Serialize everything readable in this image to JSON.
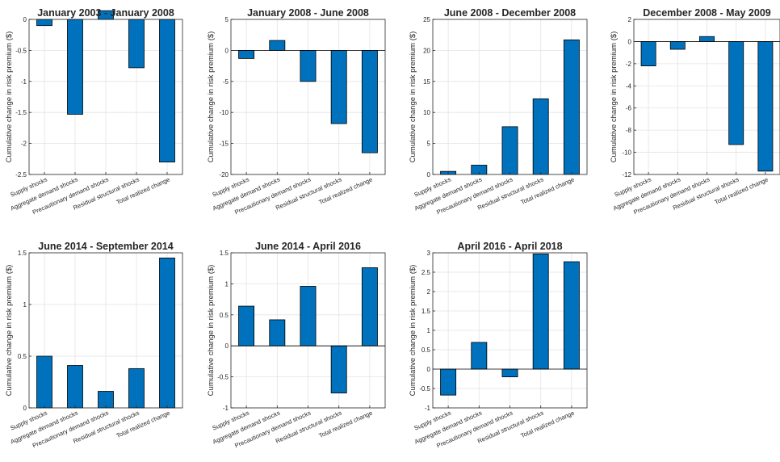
{
  "figure": {
    "bar_color": "#0072BD",
    "bar_edge": "#000000",
    "grid_color": "#e3e3e3",
    "axis_color": "#262626"
  },
  "chart_data": [
    {
      "type": "bar",
      "title": "January 2003 - January 2008",
      "ylabel": "Cumulative change in risk premium ($)",
      "categories": [
        "Supply shocks",
        "Aggregate demand shocks",
        "Precautionary demand shocks",
        "Residual structural shocks",
        "Total realized change"
      ],
      "values": [
        -0.1,
        -1.53,
        0.14,
        -0.78,
        -2.3
      ],
      "ylim": [
        -2.5,
        0
      ],
      "yticks": [
        0,
        -0.5,
        -1,
        -1.5,
        -2,
        -2.5
      ],
      "ytick_labels": [
        "0",
        "-0.5",
        "-1",
        "-1.5",
        "-2",
        "-2.5"
      ],
      "grid": true
    },
    {
      "type": "bar",
      "title": "January 2008 - June 2008",
      "ylabel": "Cumulative change in risk premium ($)",
      "categories": [
        "Supply shocks",
        "Aggregate demand shocks",
        "Precautionary demand shocks",
        "Residual structural shocks",
        "Total realized change"
      ],
      "values": [
        -1.3,
        1.6,
        -5.0,
        -11.8,
        -16.5
      ],
      "ylim": [
        -20,
        5
      ],
      "yticks": [
        5,
        0,
        -5,
        -10,
        -15,
        -20
      ],
      "ytick_labels": [
        "5",
        "0",
        "-5",
        "-10",
        "-15",
        "-20"
      ],
      "grid": true
    },
    {
      "type": "bar",
      "title": "June 2008 - December 2008",
      "ylabel": "Cumulative change in risk premium ($)",
      "categories": [
        "Supply shocks",
        "Aggregate demand shocks",
        "Precautionary demand shocks",
        "Residual structural shocks",
        "Total realized change"
      ],
      "values": [
        0.5,
        1.5,
        7.7,
        12.2,
        21.7
      ],
      "ylim": [
        0,
        25
      ],
      "yticks": [
        25,
        20,
        15,
        10,
        5,
        0
      ],
      "ytick_labels": [
        "25",
        "20",
        "15",
        "10",
        "5",
        "0"
      ],
      "grid": true
    },
    {
      "type": "bar",
      "title": "December 2008 - May 2009",
      "ylabel": "Cumulative change in risk premium ($)",
      "categories": [
        "Supply shocks",
        "Aggregate demand shocks",
        "Precautionary demand shocks",
        "Residual structural shocks",
        "Total realized change"
      ],
      "values": [
        -2.2,
        -0.7,
        0.45,
        -9.3,
        -11.7
      ],
      "ylim": [
        -12,
        2
      ],
      "yticks": [
        2,
        0,
        -2,
        -4,
        -6,
        -8,
        -10,
        -12
      ],
      "ytick_labels": [
        "2",
        "0",
        "-2",
        "-4",
        "-6",
        "-8",
        "-10",
        "-12"
      ],
      "grid": true
    },
    {
      "type": "bar",
      "title": "June 2014 - September 2014",
      "ylabel": "Cumulative change in risk premium ($)",
      "categories": [
        "Supply shocks",
        "Aggregate demand shocks",
        "Precautionary demand shocks",
        "Residual structural shocks",
        "Total realized change"
      ],
      "values": [
        0.5,
        0.41,
        0.16,
        0.38,
        1.45
      ],
      "ylim": [
        0,
        1.5
      ],
      "yticks": [
        1.5,
        1,
        0.5,
        0
      ],
      "ytick_labels": [
        "1.5",
        "1",
        "0.5",
        "0"
      ],
      "grid": true
    },
    {
      "type": "bar",
      "title": "June 2014 - April 2016",
      "ylabel": "Cumulative change in risk premium ($)",
      "categories": [
        "Supply shocks",
        "Aggregate demand shocks",
        "Precautionary demand shocks",
        "Residual structural shocks",
        "Total realized change"
      ],
      "values": [
        0.64,
        0.42,
        0.96,
        -0.76,
        1.26
      ],
      "ylim": [
        -1,
        1.5
      ],
      "yticks": [
        1.5,
        1,
        0.5,
        0,
        -0.5,
        -1
      ],
      "ytick_labels": [
        "1.5",
        "1",
        "0.5",
        "0",
        "-0.5",
        "-1"
      ],
      "grid": true
    },
    {
      "type": "bar",
      "title": "April 2016 - April 2018",
      "ylabel": "Cumulative change in risk premium ($)",
      "categories": [
        "Supply shocks",
        "Aggregate demand shocks",
        "Precautionary demand shocks",
        "Residual structural shocks",
        "Total realized change"
      ],
      "values": [
        -0.67,
        0.69,
        -0.2,
        2.97,
        2.77
      ],
      "ylim": [
        -1,
        3
      ],
      "yticks": [
        3,
        2.5,
        2,
        1.5,
        1,
        0.5,
        0,
        -0.5,
        -1
      ],
      "ytick_labels": [
        "3",
        "2.5",
        "2",
        "1.5",
        "1",
        "0.5",
        "0",
        "-0.5",
        "-1"
      ],
      "grid": true
    }
  ]
}
